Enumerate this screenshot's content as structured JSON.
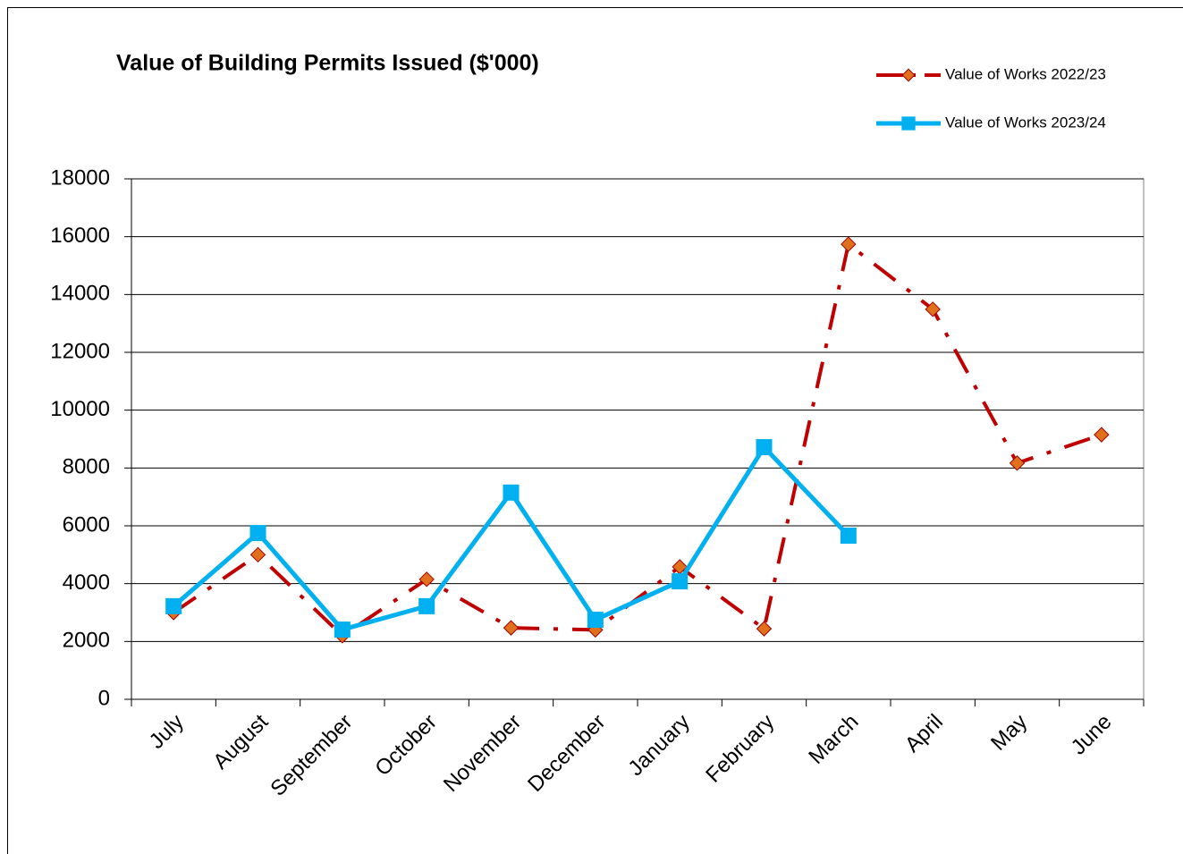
{
  "chart_data": {
    "type": "line",
    "title": "Value of Building Permits Issued ($'000)",
    "categories": [
      "July",
      "August",
      "September",
      "October",
      "November",
      "December",
      "January",
      "February",
      "March",
      "April",
      "May",
      "June"
    ],
    "series": [
      {
        "name": "Value of Works 2022/23",
        "color": "#c00000",
        "marker_color": "#e0701c",
        "marker": "diamond",
        "line_style": "dash-dot",
        "values": [
          3000,
          5000,
          2200,
          4150,
          2470,
          2400,
          4580,
          2440,
          15740,
          13490,
          8170,
          9150
        ]
      },
      {
        "name": "Value of Works 2023/24",
        "color": "#00b0f0",
        "marker_color": "#00b0f0",
        "marker": "square",
        "line_style": "solid",
        "values": [
          3220,
          5750,
          2410,
          3220,
          7150,
          2750,
          4080,
          8720,
          5660,
          null,
          null,
          null
        ]
      }
    ],
    "ylim": [
      0,
      18000
    ],
    "yticks": [
      0,
      2000,
      4000,
      6000,
      8000,
      10000,
      12000,
      14000,
      16000,
      18000
    ],
    "grid": true,
    "legend": "top-right"
  }
}
